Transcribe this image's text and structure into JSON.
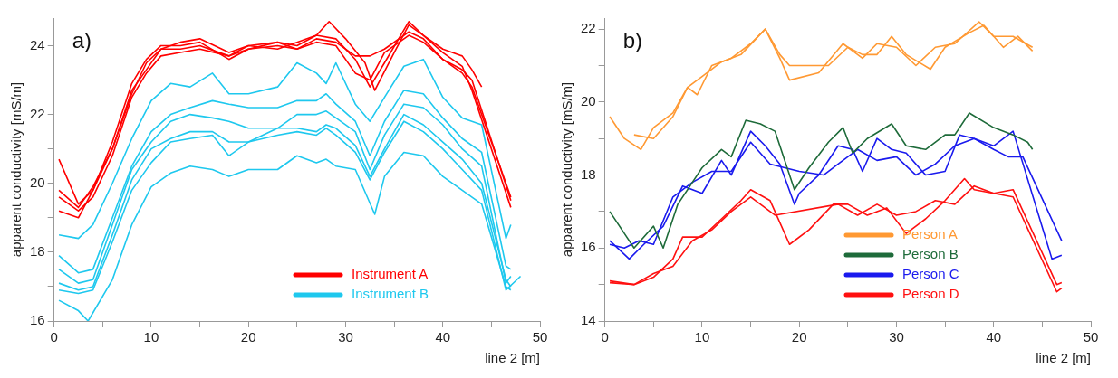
{
  "chart_data": [
    {
      "type": "line",
      "xlabel": "line 2 [m]",
      "ylabel": "apparent conductivity [mS/m]",
      "annotations": [
        "a)"
      ],
      "legend": "bottom right",
      "marker": "none",
      "line_style": "solid",
      "grid": false,
      "xlim": [
        0,
        50
      ],
      "xticks": [
        0,
        {
          "value": 5,
          "label": null
        },
        10,
        {
          "value": 15,
          "label": null
        },
        20,
        {
          "value": 25,
          "label": null
        },
        30,
        {
          "value": 35,
          "label": null
        },
        40,
        {
          "value": 45,
          "label": null
        },
        50
      ],
      "ylim": [
        16,
        24.8
      ],
      "yticks": [
        16,
        {
          "value": 17,
          "label": null
        },
        18,
        {
          "value": 19,
          "label": null
        },
        20,
        {
          "value": 21,
          "label": null
        },
        22,
        {
          "value": 23,
          "label": null
        },
        24
      ],
      "series": [
        {
          "name": "Instrument A",
          "color": "#ff0000",
          "x": [
            0.5,
            2.5,
            4,
            6,
            8,
            9.5,
            11,
            13,
            15,
            18,
            20,
            23,
            25,
            27,
            28.3,
            30,
            32,
            33,
            35,
            36.5,
            38,
            40,
            42,
            43,
            44
          ],
          "values": [
            20.7,
            19.4,
            19.8,
            21,
            22.6,
            23.5,
            23.9,
            24.1,
            24.2,
            23.8,
            24,
            24.1,
            24,
            24.3,
            24.7,
            24.2,
            23.5,
            22.7,
            23.8,
            24.6,
            24.3,
            23.9,
            23.7,
            23.3,
            22.8
          ]
        },
        {
          "color": "#ff0000",
          "x": [
            0.5,
            2.5,
            4,
            6,
            8,
            9.5,
            11,
            13,
            15,
            18,
            20,
            23,
            25,
            27,
            29,
            31,
            32.5,
            34,
            36.5,
            38,
            40,
            42,
            43,
            47
          ],
          "values": [
            19.2,
            19.0,
            19.8,
            21.2,
            22.9,
            23.6,
            24,
            24,
            24.1,
            23.6,
            23.9,
            24.1,
            23.9,
            24.2,
            24.1,
            23.7,
            23.7,
            23.9,
            24.4,
            24.2,
            23.6,
            23.2,
            22.8,
            19.6
          ]
        },
        {
          "color": "#ff0000",
          "x": [
            0.5,
            2.5,
            4,
            6,
            8,
            9.5,
            11,
            13,
            15,
            18,
            20,
            23,
            25,
            27,
            29,
            31,
            32.5,
            34,
            36.5,
            38,
            40,
            42,
            43,
            47
          ],
          "values": [
            19.8,
            19.3,
            19.9,
            21,
            22.7,
            23.3,
            23.9,
            23.9,
            24,
            23.7,
            24,
            23.9,
            24.1,
            24.3,
            24.2,
            23.6,
            22.8,
            23.5,
            24.7,
            24.3,
            23.8,
            23.4,
            22.7,
            19.3
          ]
        },
        {
          "color": "#ff0000",
          "x": [
            0.5,
            2.5,
            4,
            6,
            8,
            9.5,
            11,
            13,
            15,
            18,
            20,
            23,
            25,
            27,
            29,
            31,
            32.5,
            34,
            36.5,
            38,
            40,
            42,
            43,
            47
          ],
          "values": [
            19.6,
            19.2,
            19.6,
            20.8,
            22.5,
            23.2,
            23.7,
            23.8,
            23.9,
            23.7,
            23.9,
            24.0,
            23.9,
            24.1,
            24.0,
            23.2,
            23.0,
            23.8,
            24.3,
            24.1,
            23.6,
            23.3,
            23.0,
            19.5
          ]
        },
        {
          "name": "Instrument B",
          "color": "#1ec8ee",
          "x": [
            0.5,
            2.5,
            4,
            6,
            8,
            10,
            12,
            14,
            16.3,
            18,
            20,
            23,
            25,
            27,
            28,
            29,
            31,
            32.5,
            34,
            36,
            38,
            40,
            42,
            44,
            46.5,
            47
          ],
          "values": [
            18.5,
            18.4,
            18.8,
            20,
            21.3,
            22.4,
            22.9,
            22.8,
            23.2,
            22.6,
            22.6,
            22.8,
            23.5,
            23.2,
            22.9,
            23.5,
            22.3,
            21.8,
            22.5,
            23.4,
            23.6,
            22.5,
            21.9,
            21.7,
            18.4,
            18.8
          ]
        },
        {
          "color": "#1ec8ee",
          "x": [
            0.5,
            2.5,
            4,
            6,
            8,
            10,
            12,
            14,
            16.3,
            18,
            20,
            23,
            25,
            27,
            28,
            29,
            31,
            32.5,
            34,
            36,
            38,
            40,
            42,
            44,
            46.5,
            47
          ],
          "values": [
            17.9,
            17.4,
            17.5,
            19,
            20.5,
            21.5,
            22,
            22.2,
            22.4,
            22.3,
            22.2,
            22.2,
            22.4,
            22.4,
            22.6,
            22.3,
            21.8,
            20.8,
            21.8,
            22.7,
            22.6,
            21.9,
            21.3,
            20.9,
            17.6,
            17.5
          ]
        },
        {
          "color": "#1ec8ee",
          "x": [
            0.5,
            2.5,
            4,
            6,
            8,
            10,
            12,
            14,
            16.3,
            18,
            20,
            23,
            25,
            27,
            28,
            29,
            31,
            32.5,
            34,
            36,
            38,
            40,
            42,
            44,
            46.5,
            47
          ],
          "values": [
            17.5,
            17.1,
            17.2,
            18.8,
            20.4,
            21.2,
            21.8,
            22,
            21.9,
            21.8,
            21.6,
            21.6,
            22,
            22,
            22.1,
            21.9,
            21.5,
            20.4,
            21.4,
            22.3,
            22.2,
            21.7,
            21,
            20.5,
            17.1,
            17.3
          ]
        },
        {
          "color": "#1ec8ee",
          "x": [
            0.5,
            2.5,
            4,
            6,
            8,
            10,
            12,
            14,
            16.3,
            18,
            20,
            23,
            25,
            27,
            28,
            29,
            31,
            32.5,
            34,
            36,
            38,
            40,
            42,
            44,
            46.5,
            47
          ],
          "values": [
            17.1,
            16.9,
            17,
            18.5,
            20.1,
            21,
            21.3,
            21.5,
            21.5,
            21.2,
            21.2,
            21.6,
            21.6,
            21.5,
            21.7,
            21.6,
            21.1,
            20.2,
            21,
            22,
            21.7,
            21.2,
            20.7,
            20,
            17.2,
            17
          ]
        },
        {
          "color": "#1ec8ee",
          "x": [
            0.5,
            2.5,
            4,
            6,
            8,
            10,
            12,
            14,
            16.3,
            18,
            20,
            23,
            25,
            27,
            28,
            29,
            31,
            32.5,
            34,
            36,
            38,
            40,
            42,
            44,
            46.5,
            48
          ],
          "values": [
            16.9,
            16.8,
            16.9,
            18.3,
            19.8,
            20.6,
            21.2,
            21.3,
            21.4,
            20.8,
            21.2,
            21.4,
            21.5,
            21.4,
            21.6,
            21.4,
            20.9,
            20.1,
            20.9,
            21.8,
            21.5,
            21,
            20.4,
            19.8,
            16.9,
            17.3
          ]
        },
        {
          "color": "#1ec8ee",
          "x": [
            0.5,
            2.5,
            3.5,
            6,
            8,
            10,
            12,
            14,
            16.3,
            18,
            20,
            23,
            25,
            27,
            28,
            29,
            31,
            33,
            34,
            36,
            38,
            40,
            42,
            44,
            46.5,
            47
          ],
          "values": [
            16.6,
            16.3,
            16,
            17.2,
            18.8,
            19.9,
            20.3,
            20.5,
            20.4,
            20.2,
            20.4,
            20.4,
            20.8,
            20.6,
            20.7,
            20.5,
            20.4,
            19.1,
            20.2,
            20.9,
            20.8,
            20.2,
            19.8,
            19.4,
            17,
            16.9
          ]
        }
      ]
    },
    {
      "type": "line",
      "xlabel": "line 2 [m]",
      "ylabel": "apparent conductivity [mS/m]",
      "annotations": [
        "b)"
      ],
      "legend": "bottom right",
      "marker": "none",
      "line_style": "solid",
      "grid": false,
      "xlim": [
        0,
        50
      ],
      "xticks": [
        0,
        {
          "value": 5,
          "label": null
        },
        10,
        {
          "value": 15,
          "label": null
        },
        20,
        {
          "value": 25,
          "label": null
        },
        30,
        {
          "value": 35,
          "label": null
        },
        40,
        {
          "value": 45,
          "label": null
        },
        50
      ],
      "ylim": [
        14,
        22.3
      ],
      "yticks": [
        14,
        {
          "value": 15,
          "label": null
        },
        16,
        {
          "value": 17,
          "label": null
        },
        18,
        {
          "value": 19,
          "label": null
        },
        20,
        {
          "value": 21,
          "label": null
        },
        22
      ],
      "series": [
        {
          "name": "Person A",
          "color": "#ff9933",
          "x": [
            0.5,
            2,
            3.7,
            5,
            7,
            8.5,
            9.5,
            11,
            13,
            15,
            16.5,
            18,
            19,
            22,
            24.5,
            26.5,
            28,
            30,
            32,
            34,
            36,
            38.5,
            40,
            42,
            44
          ],
          "values": [
            19.6,
            19,
            18.7,
            19.3,
            19.7,
            20.4,
            20.2,
            21,
            21.2,
            21.6,
            22,
            21.2,
            20.6,
            20.8,
            21.6,
            21.2,
            21.6,
            21.5,
            21,
            21.5,
            21.6,
            22.2,
            21.8,
            21.8,
            21.5
          ]
        },
        {
          "color": "#ff9933",
          "x": [
            3,
            5,
            7,
            8.5,
            10,
            12,
            14,
            16.5,
            18,
            19,
            23,
            25,
            26.5,
            28,
            29.5,
            31,
            33.5,
            35,
            37.5,
            39,
            41,
            42.5,
            44
          ],
          "values": [
            19.1,
            19,
            19.6,
            20.4,
            20.7,
            21.1,
            21.3,
            22,
            21.3,
            21,
            21,
            21.5,
            21.3,
            21.3,
            21.8,
            21.3,
            20.9,
            21.5,
            21.9,
            22.1,
            21.5,
            21.8,
            21.4
          ]
        },
        {
          "name": "Person B",
          "color": "#1e6b3a",
          "x": [
            0.5,
            2,
            3,
            5,
            6,
            7.5,
            9,
            10,
            12,
            13,
            14.5,
            16,
            17.5,
            19.5,
            21,
            23,
            24.5,
            25.5,
            27,
            29.5,
            31,
            33,
            35,
            36,
            37.5,
            40,
            42,
            43.5,
            44
          ],
          "values": [
            17,
            16.4,
            16,
            16.6,
            16,
            17.2,
            17.8,
            18.2,
            18.7,
            18.5,
            19.5,
            19.4,
            19.2,
            17.6,
            18.2,
            18.9,
            19.3,
            18.6,
            19,
            19.4,
            18.8,
            18.7,
            19.1,
            19.1,
            19.7,
            19.3,
            19.1,
            18.9,
            18.7
          ]
        },
        {
          "name": "Person C",
          "color": "#1a1aee",
          "x": [
            0.5,
            2.5,
            4,
            6,
            8,
            10,
            12,
            13,
            15,
            16.5,
            18,
            19.5,
            20,
            22,
            24,
            25.5,
            26.5,
            28,
            29.5,
            31,
            33,
            35,
            36.5,
            38,
            40,
            41.5,
            43,
            47
          ],
          "values": [
            16.2,
            15.7,
            16.1,
            16.6,
            17.7,
            17.5,
            18.4,
            18,
            19.2,
            18.8,
            18.3,
            17.2,
            17.5,
            18,
            18.8,
            18.7,
            18.1,
            19,
            18.7,
            18.6,
            18,
            18.1,
            19.1,
            19,
            18.7,
            18.5,
            18.5,
            16.2
          ]
        },
        {
          "color": "#1a1aee",
          "x": [
            0.5,
            2,
            3.5,
            5,
            7,
            9,
            11,
            13,
            15,
            17,
            20,
            22.5,
            24,
            26,
            28,
            30,
            32,
            34,
            36,
            38,
            40,
            42,
            46,
            47
          ],
          "values": [
            16.1,
            16,
            16.2,
            16.1,
            17.4,
            17.8,
            18.1,
            18.1,
            18.9,
            18.3,
            18.1,
            18,
            18.3,
            18.7,
            18.4,
            18.5,
            18,
            18.3,
            18.8,
            19,
            18.8,
            19.2,
            15.7,
            15.8
          ]
        },
        {
          "name": "Person D",
          "color": "#ff1010",
          "x": [
            0.5,
            3,
            5,
            7,
            8,
            10,
            12,
            14,
            15,
            17,
            19,
            21,
            23.5,
            25,
            27,
            29,
            31,
            33,
            35,
            37,
            38,
            40,
            42,
            46.5,
            47
          ],
          "values": [
            15.1,
            15,
            15.2,
            15.7,
            16.3,
            16.3,
            16.8,
            17.3,
            17.6,
            17.3,
            16.1,
            16.5,
            17.2,
            17.2,
            16.9,
            17.1,
            16.4,
            16.8,
            17.3,
            17.9,
            17.6,
            17.5,
            17.6,
            15,
            15.05
          ]
        },
        {
          "color": "#ff1010",
          "x": [
            0.5,
            3,
            5,
            7,
            9,
            11,
            13,
            15,
            17.5,
            24,
            26,
            28,
            30,
            32,
            34,
            36,
            38,
            40,
            42,
            46.5,
            47
          ],
          "values": [
            15.05,
            15,
            15.3,
            15.5,
            16.2,
            16.5,
            17,
            17.4,
            16.9,
            17.2,
            16.9,
            17.2,
            16.9,
            17,
            17.3,
            17.2,
            17.7,
            17.5,
            17.4,
            14.8,
            14.9
          ]
        }
      ]
    }
  ]
}
